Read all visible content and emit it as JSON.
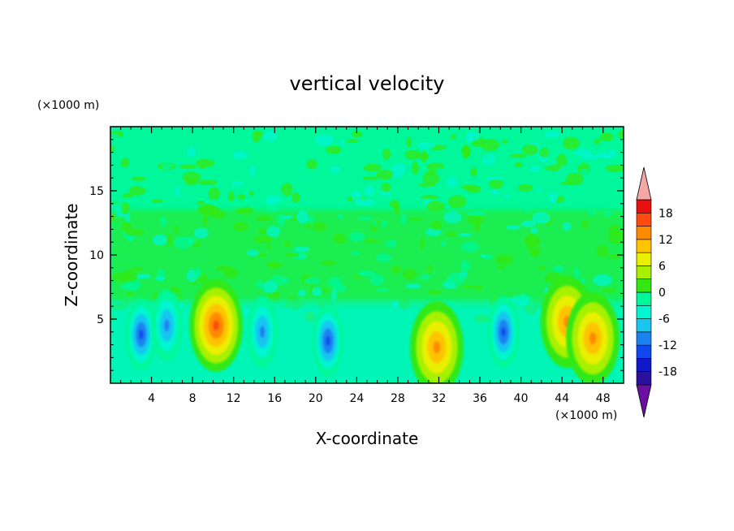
{
  "chart_data": {
    "type": "heatmap",
    "title": "vertical velocity",
    "xlabel": "X-coordinate",
    "ylabel": "Z-coordinate",
    "x_unit": "(×1000 m)",
    "y_unit": "(×1000 m)",
    "xlim": [
      0,
      50
    ],
    "ylim": [
      0,
      20
    ],
    "x_ticks": [
      4,
      8,
      12,
      16,
      20,
      24,
      28,
      32,
      36,
      40,
      44,
      48
    ],
    "y_ticks": [
      5,
      10,
      15
    ],
    "colorbar": {
      "levels": [
        -21,
        -18,
        -15,
        -12,
        -9,
        -6,
        -3,
        0,
        3,
        6,
        9,
        12,
        15,
        18,
        21
      ],
      "labels": [
        "18",
        "12",
        "6",
        "0",
        "-6",
        "-12",
        "-18"
      ],
      "label_values": [
        18,
        12,
        6,
        0,
        -6,
        -12,
        -18
      ],
      "colors": [
        "#6a0fa0",
        "#2a109c",
        "#1018c8",
        "#1048f0",
        "#1c82f0",
        "#18c6f0",
        "#00f5d0",
        "#00f79a",
        "#33e812",
        "#a6f000",
        "#e8f000",
        "#ffc400",
        "#ff8a00",
        "#ff4a10",
        "#ea1010",
        "#f4a7a7"
      ],
      "extend": "both"
    },
    "features": [
      {
        "x": 3.0,
        "z": 3.8,
        "value": -11
      },
      {
        "x": 5.5,
        "z": 4.5,
        "value": -9
      },
      {
        "x": 10.3,
        "z": 4.5,
        "value": 15
      },
      {
        "x": 14.8,
        "z": 4.0,
        "value": -9
      },
      {
        "x": 21.2,
        "z": 3.3,
        "value": -11
      },
      {
        "x": 31.8,
        "z": 2.8,
        "value": 10
      },
      {
        "x": 38.3,
        "z": 4.0,
        "value": -10
      },
      {
        "x": 44.5,
        "z": 4.8,
        "value": 12
      },
      {
        "x": 47.0,
        "z": 3.5,
        "value": 10
      }
    ]
  }
}
